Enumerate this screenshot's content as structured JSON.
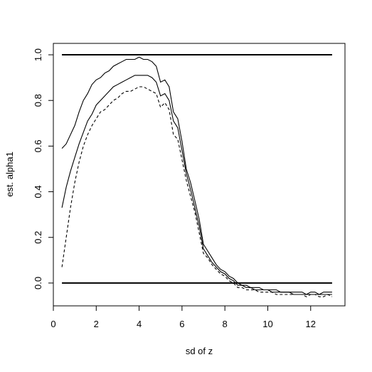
{
  "chart_data": {
    "type": "line",
    "title": "",
    "xlabel": "sd of z",
    "ylabel": "est. alpha1",
    "xlim": [
      0,
      13.6
    ],
    "ylim": [
      -0.1,
      1.05
    ],
    "x_ticks": [
      0,
      2,
      4,
      6,
      8,
      10,
      12
    ],
    "y_ticks": [
      0.0,
      0.2,
      0.4,
      0.6,
      0.8,
      1.0
    ],
    "grid": false,
    "legend": "none",
    "reference_lines": [
      {
        "y": 1.0,
        "x_range": [
          0.4,
          13.0
        ],
        "style": "solid-thick"
      },
      {
        "y": 0.0,
        "x_range": [
          0.4,
          13.0
        ],
        "style": "solid-thick"
      }
    ],
    "series": [
      {
        "style": "solid",
        "x": [
          0.4,
          0.6,
          0.8,
          1.0,
          1.2,
          1.4,
          1.6,
          1.8,
          2.0,
          2.2,
          2.4,
          2.6,
          2.8,
          3.0,
          3.2,
          3.4,
          3.6,
          3.8,
          4.0,
          4.2,
          4.4,
          4.6,
          4.8,
          5.0,
          5.2,
          5.4,
          5.6,
          5.8,
          6.0,
          6.2,
          6.4,
          6.6,
          6.8,
          7.0,
          7.2,
          7.4,
          7.6,
          7.8,
          8.0,
          8.2,
          8.4,
          8.6,
          8.8,
          9.0,
          9.2,
          9.4,
          9.6,
          9.8,
          10.0,
          10.2,
          10.4,
          10.6,
          10.8,
          11.0,
          11.2,
          11.4,
          11.6,
          11.8,
          12.0,
          12.2,
          12.4,
          12.6,
          12.8,
          13.0
        ],
        "y": [
          0.59,
          0.61,
          0.65,
          0.69,
          0.75,
          0.8,
          0.83,
          0.87,
          0.89,
          0.9,
          0.92,
          0.93,
          0.95,
          0.96,
          0.97,
          0.98,
          0.98,
          0.98,
          0.99,
          0.98,
          0.98,
          0.97,
          0.95,
          0.88,
          0.89,
          0.86,
          0.75,
          0.72,
          0.62,
          0.5,
          0.44,
          0.36,
          0.28,
          0.17,
          0.14,
          0.11,
          0.08,
          0.06,
          0.05,
          0.03,
          0.02,
          0.0,
          -0.01,
          -0.01,
          -0.02,
          -0.02,
          -0.02,
          -0.03,
          -0.03,
          -0.03,
          -0.03,
          -0.04,
          -0.04,
          -0.04,
          -0.04,
          -0.04,
          -0.04,
          -0.05,
          -0.04,
          -0.04,
          -0.05,
          -0.04,
          -0.04,
          -0.04
        ]
      },
      {
        "style": "solid",
        "x": [
          0.4,
          0.6,
          0.8,
          1.0,
          1.2,
          1.4,
          1.6,
          1.8,
          2.0,
          2.2,
          2.4,
          2.6,
          2.8,
          3.0,
          3.2,
          3.4,
          3.6,
          3.8,
          4.0,
          4.2,
          4.4,
          4.6,
          4.8,
          5.0,
          5.2,
          5.4,
          5.6,
          5.8,
          6.0,
          6.2,
          6.4,
          6.6,
          6.8,
          7.0,
          7.2,
          7.4,
          7.6,
          7.8,
          8.0,
          8.2,
          8.4,
          8.6,
          8.8,
          9.0,
          9.2,
          9.4,
          9.6,
          9.8,
          10.0,
          10.2,
          10.4,
          10.6,
          10.8,
          11.0,
          11.2,
          11.4,
          11.6,
          11.8,
          12.0,
          12.2,
          12.4,
          12.6,
          12.8,
          13.0
        ],
        "y": [
          0.33,
          0.42,
          0.49,
          0.55,
          0.61,
          0.66,
          0.71,
          0.74,
          0.78,
          0.8,
          0.82,
          0.84,
          0.86,
          0.87,
          0.88,
          0.89,
          0.9,
          0.91,
          0.91,
          0.91,
          0.91,
          0.9,
          0.88,
          0.82,
          0.83,
          0.8,
          0.71,
          0.68,
          0.58,
          0.48,
          0.41,
          0.33,
          0.25,
          0.15,
          0.12,
          0.09,
          0.07,
          0.05,
          0.04,
          0.02,
          0.01,
          -0.01,
          -0.01,
          -0.02,
          -0.02,
          -0.03,
          -0.03,
          -0.03,
          -0.03,
          -0.04,
          -0.04,
          -0.04,
          -0.04,
          -0.04,
          -0.05,
          -0.05,
          -0.05,
          -0.05,
          -0.05,
          -0.05,
          -0.05,
          -0.05,
          -0.05,
          -0.05
        ]
      },
      {
        "style": "dashed",
        "x": [
          0.4,
          0.6,
          0.8,
          1.0,
          1.2,
          1.4,
          1.6,
          1.8,
          2.0,
          2.2,
          2.4,
          2.6,
          2.8,
          3.0,
          3.2,
          3.4,
          3.6,
          3.8,
          4.0,
          4.2,
          4.4,
          4.6,
          4.8,
          5.0,
          5.2,
          5.4,
          5.6,
          5.8,
          6.0,
          6.2,
          6.4,
          6.6,
          6.8,
          7.0,
          7.2,
          7.4,
          7.6,
          7.8,
          8.0,
          8.2,
          8.4,
          8.6,
          8.8,
          9.0,
          9.2,
          9.4,
          9.6,
          9.8,
          10.0,
          10.2,
          10.4,
          10.6,
          10.8,
          11.0,
          11.2,
          11.4,
          11.6,
          11.8,
          12.0,
          12.2,
          12.4,
          12.6,
          12.8,
          13.0
        ],
        "y": [
          0.07,
          0.2,
          0.33,
          0.44,
          0.53,
          0.6,
          0.65,
          0.69,
          0.72,
          0.75,
          0.76,
          0.78,
          0.8,
          0.81,
          0.83,
          0.84,
          0.84,
          0.85,
          0.86,
          0.86,
          0.85,
          0.84,
          0.83,
          0.77,
          0.79,
          0.76,
          0.65,
          0.63,
          0.54,
          0.45,
          0.38,
          0.31,
          0.22,
          0.13,
          0.11,
          0.08,
          0.06,
          0.04,
          0.03,
          0.01,
          0.0,
          -0.02,
          -0.02,
          -0.03,
          -0.03,
          -0.03,
          -0.04,
          -0.04,
          -0.04,
          -0.04,
          -0.05,
          -0.05,
          -0.05,
          -0.05,
          -0.05,
          -0.05,
          -0.05,
          -0.06,
          -0.05,
          -0.05,
          -0.06,
          -0.06,
          -0.05,
          -0.06
        ]
      }
    ]
  }
}
